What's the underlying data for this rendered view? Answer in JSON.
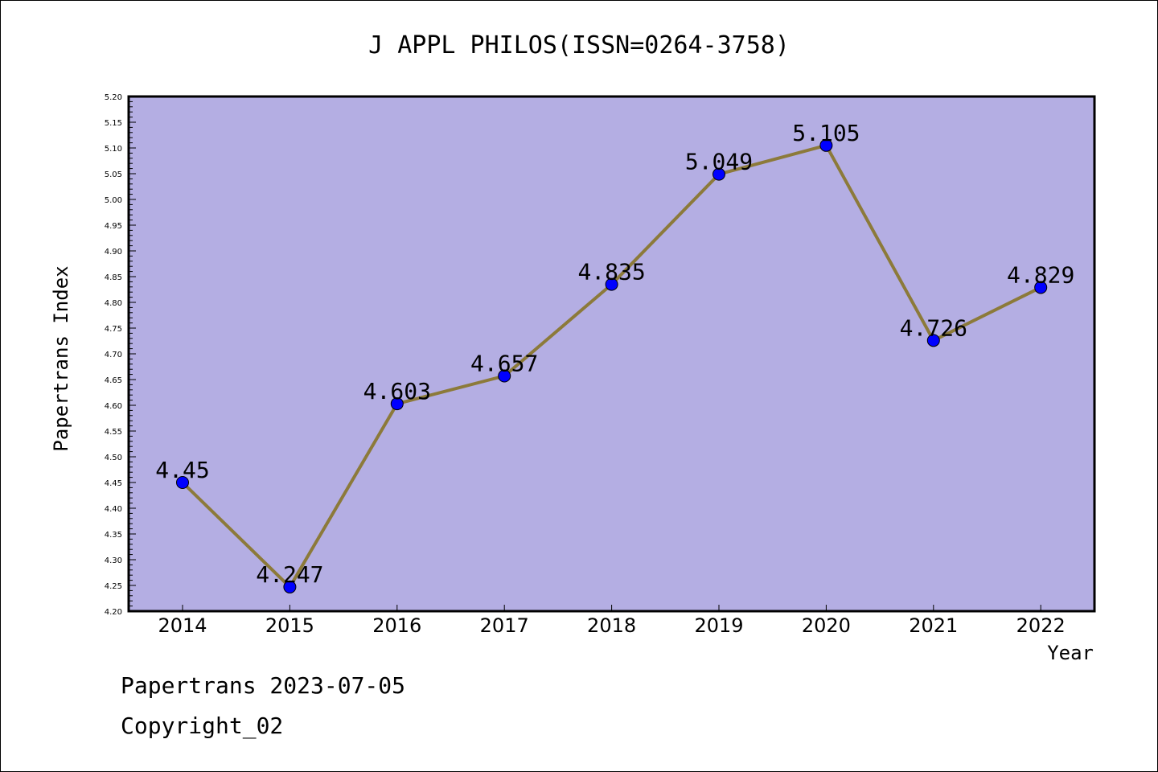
{
  "chart_data": {
    "type": "line",
    "title": "J APPL PHILOS(ISSN=0264-3758)",
    "xlabel": "Year",
    "ylabel": "Papertrans Index",
    "categories": [
      "2014",
      "2015",
      "2016",
      "2017",
      "2018",
      "2019",
      "2020",
      "2021",
      "2022"
    ],
    "values": [
      4.45,
      4.247,
      4.603,
      4.657,
      4.835,
      5.049,
      5.105,
      4.726,
      4.829
    ],
    "data_labels": [
      "4.45",
      "4.247",
      "4.603",
      "4.657",
      "4.835",
      "5.049",
      "5.105",
      "4.726",
      "4.829"
    ],
    "ylim": [
      4.2,
      5.2
    ],
    "ytick_labels": [
      "4.20",
      "4.25",
      "4.30",
      "4.35",
      "4.40",
      "4.45",
      "4.50",
      "4.55",
      "4.60",
      "4.65",
      "4.70",
      "4.75",
      "4.80",
      "4.85",
      "4.90",
      "4.95",
      "5.00",
      "5.05",
      "5.10",
      "5.15",
      "5.20"
    ],
    "grid": false,
    "legend": "none",
    "colors": {
      "plot_background": "#b4aee3",
      "line": "#8c7a3a",
      "marker": "#0000ff"
    }
  },
  "footer": {
    "line1": "Papertrans 2023-07-05",
    "line2": "Copyright_02"
  }
}
